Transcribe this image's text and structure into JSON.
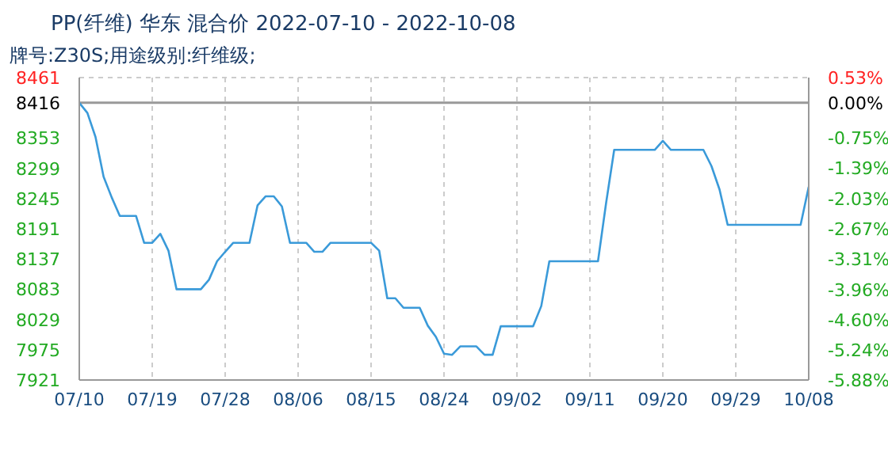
{
  "chart_data": {
    "type": "line",
    "title": "PP(纤维) 华东 混合价 2022-07-10 - 2022-10-08",
    "subtitle": "牌号:Z30S;用途级别:纤维级;",
    "x": [
      "2022-07-10",
      "2022-07-11",
      "2022-07-12",
      "2022-07-13",
      "2022-07-14",
      "2022-07-15",
      "2022-07-17",
      "2022-07-18",
      "2022-07-19",
      "2022-07-20",
      "2022-07-21",
      "2022-07-22",
      "2022-07-25",
      "2022-07-26",
      "2022-07-27",
      "2022-07-28",
      "2022-07-29",
      "2022-07-31",
      "2022-08-01",
      "2022-08-02",
      "2022-08-03",
      "2022-08-04",
      "2022-08-05",
      "2022-08-07",
      "2022-08-08",
      "2022-08-09",
      "2022-08-10",
      "2022-08-15",
      "2022-08-16",
      "2022-08-17",
      "2022-08-18",
      "2022-08-19",
      "2022-08-21",
      "2022-08-22",
      "2022-08-23",
      "2022-08-24",
      "2022-08-25",
      "2022-08-26",
      "2022-08-28",
      "2022-08-29",
      "2022-08-30",
      "2022-08-31",
      "2022-09-04",
      "2022-09-05",
      "2022-09-06",
      "2022-09-12",
      "2022-09-13",
      "2022-09-14",
      "2022-09-19",
      "2022-09-20",
      "2022-09-21",
      "2022-09-25",
      "2022-09-26",
      "2022-09-27",
      "2022-09-28",
      "2022-10-07",
      "2022-10-08"
    ],
    "series": [
      {
        "color": "#3a9ad9",
        "values": [
          8416,
          8398,
          8355,
          8284,
          8247,
          8214,
          8214,
          8166,
          8166,
          8182,
          8152,
          8083,
          8083,
          8100,
          8133,
          8150,
          8166,
          8166,
          8233,
          8249,
          8249,
          8231,
          8166,
          8166,
          8150,
          8150,
          8166,
          8166,
          8152,
          8067,
          8067,
          8050,
          8050,
          8018,
          7998,
          7968,
          7966,
          7981,
          7981,
          7966,
          7966,
          8017,
          8017,
          8053,
          8133,
          8133,
          8237,
          8332,
          8332,
          8348,
          8332,
          8332,
          8303,
          8261,
          8198,
          8198,
          8266
        ]
      }
    ],
    "xlim": [
      "2022-07-10",
      "2022-10-08"
    ],
    "xticks": [
      {
        "value": "2022-07-10",
        "label": "07/10"
      },
      {
        "value": "2022-07-19",
        "label": "07/19"
      },
      {
        "value": "2022-07-28",
        "label": "07/28"
      },
      {
        "value": "2022-08-06",
        "label": "08/06"
      },
      {
        "value": "2022-08-15",
        "label": "08/15"
      },
      {
        "value": "2022-08-24",
        "label": "08/24"
      },
      {
        "value": "2022-09-02",
        "label": "09/02"
      },
      {
        "value": "2022-09-11",
        "label": "09/11"
      },
      {
        "value": "2022-09-20",
        "label": "09/20"
      },
      {
        "value": "2022-09-29",
        "label": "09/29"
      },
      {
        "value": "2022-10-08",
        "label": "10/08"
      }
    ],
    "ylim": [
      7921,
      8461
    ],
    "yticks": [
      7921,
      7975,
      8029,
      8083,
      8137,
      8191,
      8245,
      8299,
      8353,
      8416,
      8461
    ],
    "y2lim": [
      -5.88,
      0.53
    ],
    "y2ticks": [
      {
        "value": -5.88,
        "label": "-5.88%"
      },
      {
        "value": -5.24,
        "label": "-5.24%"
      },
      {
        "value": -4.6,
        "label": "-4.60%"
      },
      {
        "value": -3.96,
        "label": "-3.96%"
      },
      {
        "value": -3.31,
        "label": "-3.31%"
      },
      {
        "value": -2.67,
        "label": "-2.67%"
      },
      {
        "value": -2.03,
        "label": "-2.03%"
      },
      {
        "value": -1.39,
        "label": "-1.39%"
      },
      {
        "value": -0.75,
        "label": "-0.75%"
      },
      {
        "value": 0,
        "label": "0.00%"
      },
      {
        "value": 0.53,
        "label": "0.53%"
      }
    ],
    "ref_lines": [
      {
        "axis": "y",
        "value": 8416,
        "color": "#999999"
      }
    ],
    "grid": true,
    "marker": "none",
    "line_style": "solid"
  }
}
